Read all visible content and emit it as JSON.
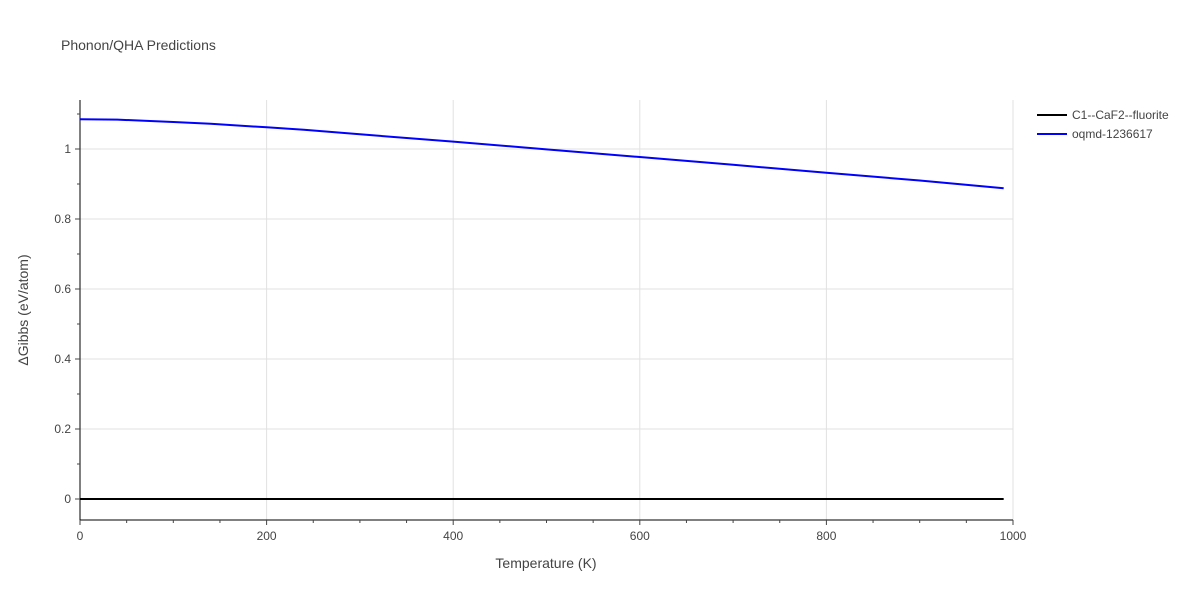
{
  "chart_data": {
    "type": "line",
    "title": "Phonon/QHA Predictions",
    "xlabel": "Temperature (K)",
    "ylabel": "ΔGibbs (eV/atom)",
    "xlim": [
      0,
      1000
    ],
    "ylim": [
      -0.06,
      1.14
    ],
    "xticks": [
      0,
      200,
      400,
      600,
      800,
      1000
    ],
    "xtick_labels": [
      "0",
      "200",
      "400",
      "600",
      "800",
      "1000"
    ],
    "yticks": [
      0,
      0.2,
      0.4,
      0.6,
      0.8,
      1
    ],
    "ytick_labels": [
      "0",
      "0.2",
      "0.4",
      "0.6",
      "0.8",
      "1"
    ],
    "grid": true,
    "legend_position": "top-right",
    "series": [
      {
        "name": "C1--CaF2--fluorite",
        "color": "#000000",
        "x": [
          0,
          990
        ],
        "y": [
          0,
          0
        ]
      },
      {
        "name": "oqmd-1236617",
        "color": "#0000ff",
        "x": [
          0,
          40,
          100,
          140,
          200,
          240,
          300,
          400,
          500,
          600,
          700,
          800,
          900,
          990
        ],
        "y": [
          1.085,
          1.084,
          1.077,
          1.072,
          1.062,
          1.055,
          1.042,
          1.021,
          0.999,
          0.977,
          0.955,
          0.932,
          0.91,
          0.888
        ]
      }
    ]
  }
}
